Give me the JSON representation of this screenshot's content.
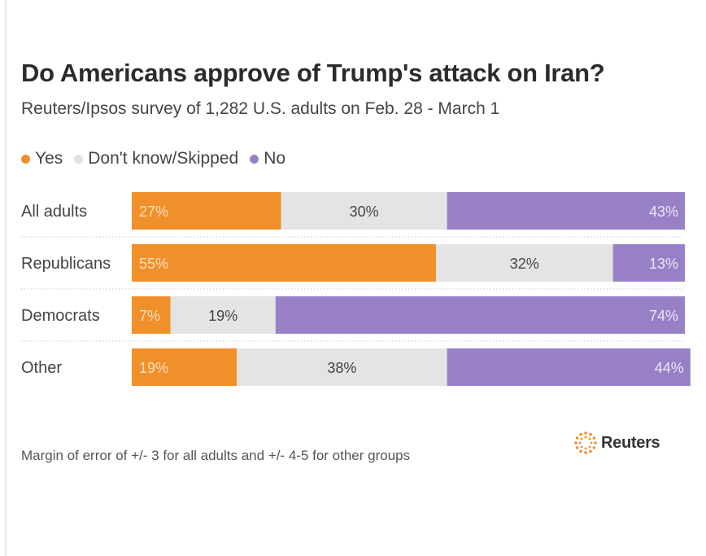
{
  "header": {
    "title": "Do Americans approve of Trump's attack on Iran?",
    "subtitle": "Reuters/Ipsos survey of 1,282 U.S. adults on Feb. 28 - March 1"
  },
  "legend": {
    "yes": "Yes",
    "dont_know": "Don't know/Skipped",
    "no": "No"
  },
  "colors": {
    "yes": "#f0902a",
    "dont_know": "#e4e4e4",
    "no": "#9880c6",
    "yes_text": "#fbe0c2",
    "dont_know_text": "#444444",
    "no_text": "#ece6f6"
  },
  "chart_data": {
    "type": "bar",
    "orientation": "horizontal",
    "stacked": true,
    "categories": [
      "All adults",
      "Republicans",
      "Democrats",
      "Other"
    ],
    "series": [
      {
        "name": "Yes",
        "key": "yes",
        "values": [
          27,
          55,
          7,
          19
        ]
      },
      {
        "name": "Don't know/Skipped",
        "key": "dont_know",
        "values": [
          30,
          32,
          19,
          38
        ]
      },
      {
        "name": "No",
        "key": "no",
        "values": [
          43,
          13,
          74,
          44
        ]
      }
    ],
    "labels": [
      [
        "27%",
        "30%",
        "43%"
      ],
      [
        "55%",
        "32%",
        "13%"
      ],
      [
        "7%",
        "19%",
        "74%"
      ],
      [
        "19%",
        "38%",
        "44%"
      ]
    ],
    "unit": "%",
    "xlim": [
      0,
      100
    ],
    "title": "Do Americans approve of Trump's attack on Iran?",
    "legend_position": "top-left"
  },
  "footer": {
    "note": "Margin of error of +/- 3 for all adults and +/- 4-5 for other groups",
    "brand": "Reuters",
    "brand_icon": "reuters-logo-icon"
  }
}
